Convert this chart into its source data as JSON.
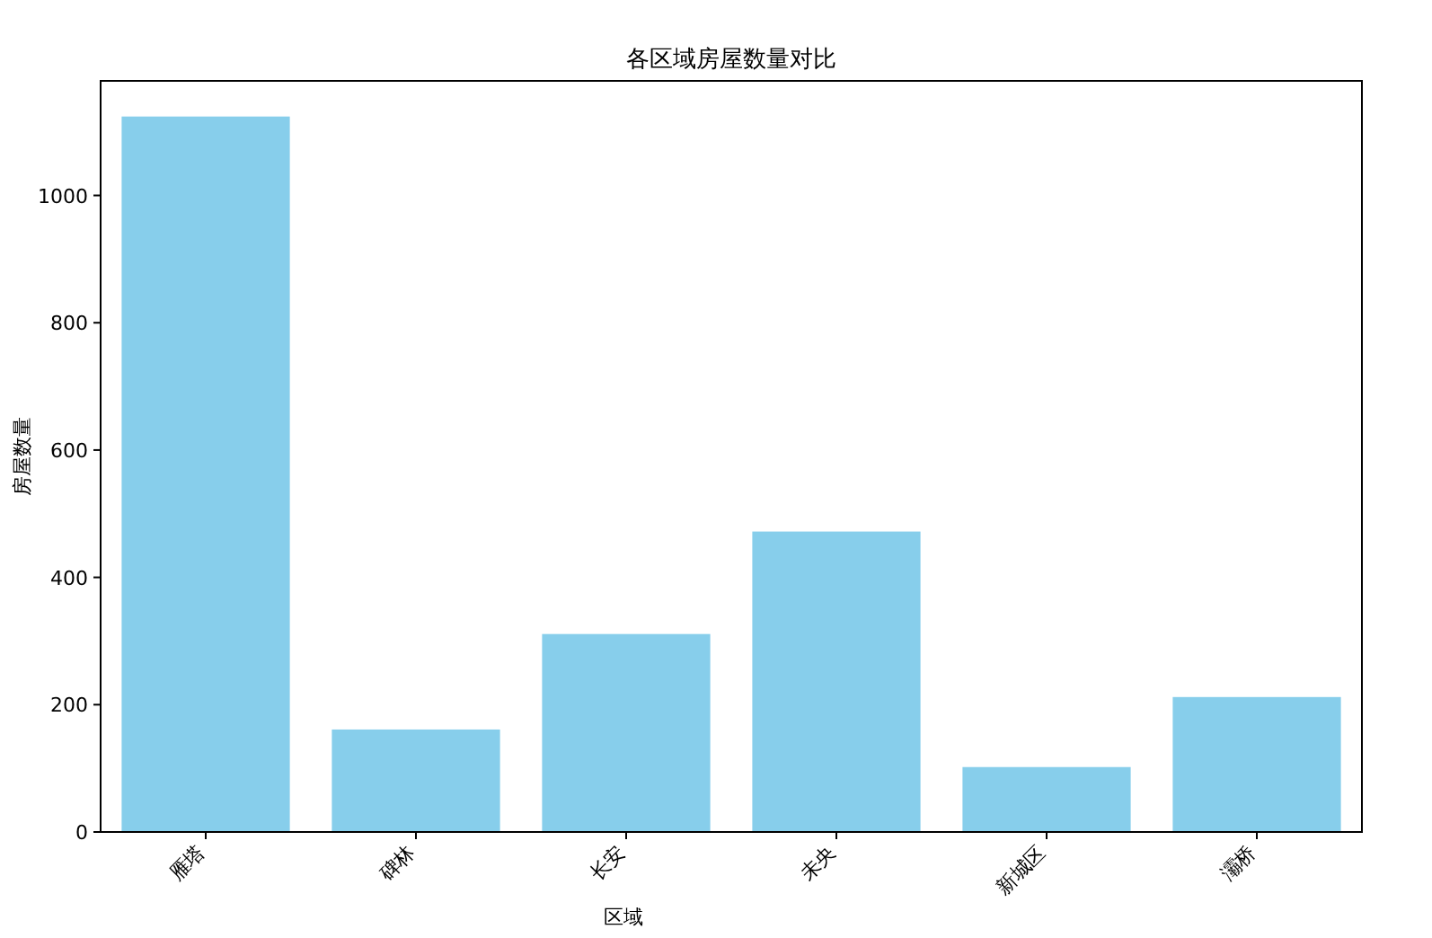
{
  "chart_data": {
    "type": "bar",
    "title": "各区域房屋数量对比",
    "xlabel": "区域",
    "ylabel": "房屋数量",
    "categories": [
      "雁塔",
      "碑林",
      "长安",
      "未央",
      "新城区",
      "灞桥"
    ],
    "values": [
      1124,
      161,
      311,
      472,
      102,
      212
    ],
    "color": "#87ceeb",
    "ylim": [
      0,
      1180
    ],
    "yticks": [
      0,
      200,
      400,
      600,
      800,
      1000
    ],
    "grid": false
  }
}
